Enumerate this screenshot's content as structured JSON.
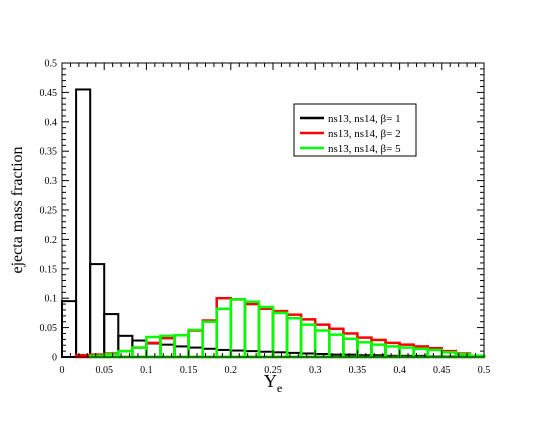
{
  "chart_data": {
    "type": "bar",
    "xlabel": "Y",
    "xlabel_subscript": "e",
    "ylabel": "ejecta mass fraction",
    "xlim": [
      0,
      0.5
    ],
    "ylim": [
      0,
      0.5
    ],
    "grid": false,
    "legend_position": "top-right",
    "bin_width": 0.0167,
    "x_ticks": [
      "0",
      "0.05",
      "0.1",
      "0.15",
      "0.2",
      "0.25",
      "0.3",
      "0.35",
      "0.4",
      "0.45",
      "0.5"
    ],
    "y_ticks": [
      "0",
      "0.05",
      "0.1",
      "0.15",
      "0.2",
      "0.25",
      "0.3",
      "0.35",
      "0.4",
      "0.45",
      "0.5"
    ],
    "x_tick_values": [
      0,
      0.05,
      0.1,
      0.15,
      0.2,
      0.25,
      0.3,
      0.35,
      0.4,
      0.45,
      0.5
    ],
    "y_tick_values": [
      0,
      0.05,
      0.1,
      0.15,
      0.2,
      0.25,
      0.3,
      0.35,
      0.4,
      0.45,
      0.5
    ],
    "bin_starts": [
      0,
      0.0167,
      0.0333,
      0.05,
      0.0667,
      0.0833,
      0.1,
      0.1167,
      0.1333,
      0.15,
      0.1667,
      0.1833,
      0.2,
      0.2167,
      0.2333,
      0.25,
      0.2667,
      0.2833,
      0.3,
      0.3167,
      0.3333,
      0.35,
      0.3667,
      0.3833,
      0.4,
      0.4167,
      0.4333,
      0.45,
      0.4667,
      0.4833
    ],
    "series": [
      {
        "name": "ns13, ns14, β= 1",
        "color": "#000000",
        "values": [
          0.095,
          0.455,
          0.158,
          0.073,
          0.036,
          0.028,
          0.023,
          0.021,
          0.018,
          0.016,
          0.014,
          0.012,
          0.011,
          0.01,
          0.009,
          0.008,
          0.007,
          0.006,
          0.005,
          0.004,
          0.004,
          0.003,
          0.003,
          0.002,
          0.002,
          0.002,
          0.001,
          0.001,
          0.001,
          0.0
        ]
      },
      {
        "name": "ns13, ns14, β= 2",
        "color": "#ff0000",
        "values": [
          0.0,
          0.003,
          0.004,
          0.006,
          0.01,
          0.016,
          0.024,
          0.032,
          0.037,
          0.045,
          0.062,
          0.1,
          0.098,
          0.09,
          0.082,
          0.078,
          0.072,
          0.064,
          0.055,
          0.048,
          0.04,
          0.033,
          0.029,
          0.024,
          0.021,
          0.018,
          0.015,
          0.01,
          0.006,
          0.002
        ]
      },
      {
        "name": "ns13, ns14, β= 5",
        "color": "#00ff00",
        "values": [
          0.0,
          0.0,
          0.002,
          0.005,
          0.01,
          0.016,
          0.034,
          0.036,
          0.037,
          0.046,
          0.06,
          0.082,
          0.098,
          0.094,
          0.085,
          0.075,
          0.066,
          0.055,
          0.045,
          0.038,
          0.031,
          0.025,
          0.021,
          0.018,
          0.016,
          0.014,
          0.012,
          0.008,
          0.005,
          0.002
        ]
      }
    ]
  }
}
